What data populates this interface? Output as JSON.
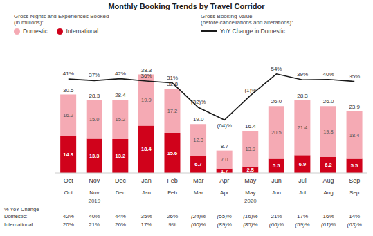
{
  "chart_data": {
    "type": "bar",
    "title": "Monthly Booking Trends by Travel Corridor",
    "categories": [
      "Oct",
      "Nov",
      "Dec",
      "Jan",
      "Feb",
      "Mar",
      "Apr",
      "May",
      "Jun",
      "Jul",
      "Aug",
      "Sep"
    ],
    "stacked": true,
    "data_labels": true,
    "grid": false,
    "legend": "top",
    "tick_labels": "x",
    "ylim": [
      0,
      50
    ],
    "y2lim": [
      -200,
      130
    ],
    "series": [
      {
        "name": "International",
        "type": "bar",
        "color": "#d0021b",
        "values": [
          14.3,
          13.3,
          13.2,
          18.4,
          15.6,
          6.7,
          1.7,
          2.5,
          5.5,
          6.9,
          6.2,
          5.5
        ],
        "value_labels": [
          "14.3",
          "13.3",
          "13.2",
          "18.4",
          "15.6",
          "6.7",
          "1.7",
          "2.5",
          "5.5",
          "6.9",
          "6.2",
          "5.5"
        ]
      },
      {
        "name": "Domestic",
        "type": "bar",
        "color": "#f5aab4",
        "values": [
          16.2,
          15.0,
          15.2,
          19.9,
          17.2,
          12.3,
          7.0,
          13.9,
          20.5,
          21.4,
          19.8,
          18.4
        ],
        "value_labels": [
          "16.2",
          "15.0",
          "15.2",
          "19.9",
          "17.2",
          "12.3",
          "7.0",
          "13.9",
          "20.5",
          "21.4",
          "19.8",
          "18.4"
        ]
      },
      {
        "name": "YoY Change in Domestic",
        "type": "line",
        "axis": "y2",
        "color": "#1a1a1a",
        "values": [
          41,
          37,
          42,
          36,
          31,
          -32,
          -64,
          -1,
          54,
          39,
          40,
          35
        ],
        "value_labels": [
          "41%",
          "37%",
          "42%",
          "36%",
          "31%",
          "(32)%",
          "(64)%",
          "(1)%",
          "54%",
          "39%",
          "40%",
          "35%"
        ]
      }
    ],
    "totals": [
      30.5,
      28.3,
      28.4,
      38.3,
      32.8,
      19.0,
      8.7,
      16.4,
      26.0,
      28.3,
      26.0,
      23.9
    ],
    "total_labels": [
      "30.5",
      "28.3",
      "28.4",
      "38.3",
      "32.8",
      "19.0",
      "8.7",
      "16.4",
      "26.0",
      "28.3",
      "26.0",
      "23.9"
    ],
    "annotations": [
      [
        "Gross Nights and Experiences Booked",
        "(in millions):"
      ],
      [
        "Gross Booking Value",
        "(before cancellations and alterations):"
      ]
    ],
    "year_labels": [
      null,
      "2019",
      null,
      null,
      null,
      null,
      null,
      "2020",
      null,
      null,
      null,
      null
    ],
    "table_rows": [
      {
        "label": "% YoY Change\nDomestic:",
        "values": [
          "42%",
          "40%",
          "44%",
          "35%",
          "26%",
          "(24)%",
          "(55)%",
          "(16)%",
          "21%",
          "17%",
          "16%",
          "14%"
        ]
      },
      {
        "label": "International:",
        "values": [
          "20%",
          "21%",
          "26%",
          "17%",
          "9%",
          "(60)%",
          "(89)%",
          "(85)%",
          "(66)%",
          "(59)%",
          "(61)%",
          "(63)%"
        ]
      }
    ]
  }
}
